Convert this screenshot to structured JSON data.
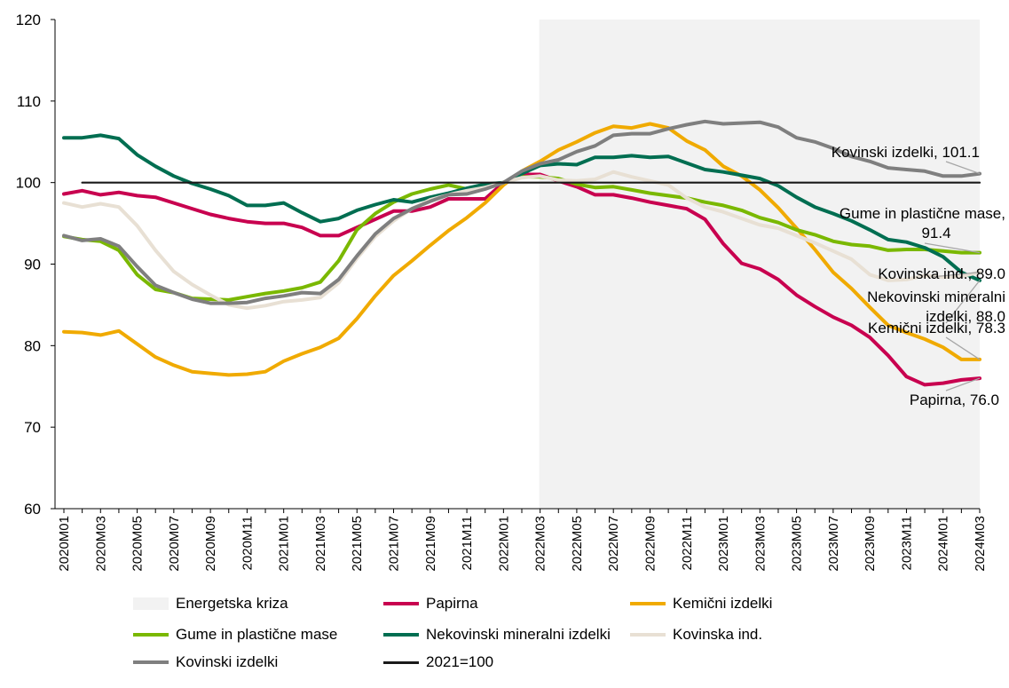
{
  "chart_data": {
    "type": "line",
    "title": "",
    "xlabel": "",
    "ylabel": "",
    "ylim": [
      60,
      120
    ],
    "yticks": [
      60,
      70,
      80,
      90,
      100,
      110,
      120
    ],
    "x": [
      "2020M01",
      "2020M02",
      "2020M03",
      "2020M04",
      "2020M05",
      "2020M06",
      "2020M07",
      "2020M08",
      "2020M09",
      "2020M10",
      "2020M11",
      "2020M12",
      "2021M01",
      "2021M02",
      "2021M03",
      "2021M04",
      "2021M05",
      "2021M06",
      "2021M07",
      "2021M08",
      "2021M09",
      "2021M10",
      "2021M11",
      "2021M12",
      "2022M01",
      "2022M02",
      "2022M03",
      "2022M04",
      "2022M05",
      "2022M06",
      "2022M07",
      "2022M08",
      "2022M09",
      "2022M10",
      "2022M11",
      "2022M12",
      "2023M01",
      "2023M02",
      "2023M03",
      "2023M04",
      "2023M05",
      "2023M06",
      "2023M07",
      "2023M08",
      "2023M09",
      "2023M10",
      "2023M11",
      "2023M12",
      "2024M01",
      "2024M02",
      "2024M03"
    ],
    "xtick_labels": [
      "2020M01",
      "2020M03",
      "2020M05",
      "2020M07",
      "2020M09",
      "2020M11",
      "2021M01",
      "2021M03",
      "2021M05",
      "2021M07",
      "2021M09",
      "2021M11",
      "2022M01",
      "2022M03",
      "2022M05",
      "2022M07",
      "2022M09",
      "2022M11",
      "2023M01",
      "2023M03",
      "2023M05",
      "2023M07",
      "2023M09",
      "2023M11",
      "2024M01",
      "2024M03"
    ],
    "shaded_region": {
      "name": "Energetska kriza",
      "from": "2022M03",
      "to": "2024M03",
      "color": "#f2f2f2"
    },
    "series": [
      {
        "name": "Papirna",
        "color": "#c8004f",
        "values": [
          98.6,
          99.0,
          98.5,
          98.8,
          98.4,
          98.2,
          97.5,
          96.8,
          96.1,
          95.6,
          95.2,
          95.0,
          95.0,
          94.5,
          93.5,
          93.5,
          94.5,
          95.5,
          96.5,
          96.5,
          97.0,
          98.0,
          98.0,
          98.0,
          100.0,
          101.0,
          101.0,
          100.2,
          99.5,
          98.5,
          98.5,
          98.1,
          97.6,
          97.2,
          96.8,
          95.5,
          92.5,
          90.1,
          89.4,
          88.1,
          86.2,
          84.8,
          83.5,
          82.5,
          81.0,
          78.8,
          76.2,
          75.2,
          75.4,
          75.8,
          76.0
        ]
      },
      {
        "name": "Kemični izdelki",
        "color": "#f0aa00",
        "values": [
          81.7,
          81.6,
          81.3,
          81.8,
          80.2,
          78.6,
          77.6,
          76.8,
          76.6,
          76.4,
          76.5,
          76.8,
          78.1,
          79.0,
          79.8,
          80.9,
          83.3,
          86.1,
          88.6,
          90.4,
          92.3,
          94.1,
          95.7,
          97.5,
          99.7,
          101.4,
          102.6,
          104.0,
          105.0,
          106.1,
          106.9,
          106.7,
          107.2,
          106.7,
          105.1,
          104.0,
          102.0,
          100.8,
          99.1,
          96.9,
          94.4,
          91.8,
          89.0,
          87.0,
          84.7,
          82.5,
          81.6,
          80.8,
          79.8,
          78.3,
          78.3
        ]
      },
      {
        "name": "Gume in plastične mase",
        "color": "#7ab800",
        "values": [
          93.4,
          93.0,
          92.8,
          91.7,
          88.7,
          86.9,
          86.5,
          85.8,
          85.7,
          85.6,
          86.0,
          86.4,
          86.7,
          87.1,
          87.8,
          90.4,
          94.2,
          96.2,
          97.6,
          98.6,
          99.2,
          99.7,
          99.2,
          99.4,
          100.0,
          100.7,
          100.7,
          100.5,
          99.8,
          99.4,
          99.5,
          99.1,
          98.7,
          98.4,
          98.1,
          97.6,
          97.2,
          96.6,
          95.7,
          95.1,
          94.2,
          93.6,
          92.8,
          92.4,
          92.2,
          91.7,
          91.8,
          91.8,
          91.6,
          91.4,
          91.4
        ]
      },
      {
        "name": "Nekovinski mineralni izdelki",
        "color": "#006e51",
        "values": [
          105.5,
          105.5,
          105.8,
          105.4,
          103.4,
          102.0,
          100.8,
          99.9,
          99.2,
          98.4,
          97.2,
          97.2,
          97.5,
          96.3,
          95.2,
          95.6,
          96.6,
          97.3,
          97.9,
          97.6,
          98.2,
          98.7,
          99.3,
          99.8,
          100.0,
          101.1,
          102.1,
          102.3,
          102.2,
          103.1,
          103.1,
          103.3,
          103.1,
          103.2,
          102.4,
          101.6,
          101.3,
          100.9,
          100.5,
          99.6,
          98.2,
          97.0,
          96.2,
          95.3,
          94.2,
          93.0,
          92.7,
          92.0,
          90.9,
          89.0,
          88.0
        ]
      },
      {
        "name": "Kovinska ind.",
        "color": "#e8e0d4",
        "values": [
          97.5,
          97.0,
          97.4,
          97.0,
          94.7,
          91.7,
          89.1,
          87.5,
          86.2,
          85.0,
          84.6,
          84.9,
          85.4,
          85.6,
          85.9,
          87.7,
          90.7,
          93.4,
          95.3,
          96.8,
          97.9,
          98.5,
          99.0,
          99.4,
          100.0,
          100.6,
          100.8,
          100.3,
          100.2,
          100.4,
          101.3,
          100.7,
          100.2,
          99.7,
          98.1,
          97.0,
          96.4,
          95.6,
          94.8,
          94.4,
          93.5,
          92.6,
          91.6,
          90.6,
          88.7,
          88.0,
          88.1,
          88.6,
          88.4,
          88.5,
          89.0
        ]
      },
      {
        "name": "Kovinski izdelki",
        "color": "#7f7f7f",
        "values": [
          93.5,
          92.9,
          93.1,
          92.2,
          89.7,
          87.4,
          86.5,
          85.7,
          85.2,
          85.2,
          85.3,
          85.8,
          86.1,
          86.5,
          86.4,
          88.1,
          91.0,
          93.7,
          95.6,
          96.8,
          97.7,
          98.5,
          98.6,
          99.2,
          100.0,
          101.4,
          102.3,
          102.8,
          103.8,
          104.5,
          105.8,
          106.0,
          106.0,
          106.6,
          107.1,
          107.5,
          107.2,
          107.3,
          107.4,
          106.8,
          105.5,
          105.0,
          104.2,
          103.2,
          102.6,
          101.8,
          101.6,
          101.4,
          100.8,
          100.8,
          101.1
        ]
      },
      {
        "name": "2021=100",
        "color": "#1a1a1a",
        "values": [
          null,
          100,
          100,
          100,
          100,
          100,
          100,
          100,
          100,
          100,
          100,
          100,
          100,
          100,
          100,
          100,
          100,
          100,
          100,
          100,
          100,
          100,
          100,
          100,
          100,
          100,
          100,
          100,
          100,
          100,
          100,
          100,
          100,
          100,
          100,
          100,
          100,
          100,
          100,
          100,
          100,
          100,
          100,
          100,
          100,
          100,
          100,
          100,
          100,
          100,
          100
        ]
      }
    ],
    "annotations": [
      {
        "series": "Kovinski izdelki",
        "lines": [
          "Kovinski izdelki, 101.1"
        ]
      },
      {
        "series": "Gume in plastične mase",
        "lines": [
          "Gume in plastične mase,",
          "91.4"
        ]
      },
      {
        "series": "Kovinska ind.",
        "lines": [
          "Kovinska ind., 89.0"
        ]
      },
      {
        "series": "Nekovinski mineralni izdelki",
        "lines": [
          "Nekovinski mineralni",
          "izdelki, 88.0"
        ]
      },
      {
        "series": "Kemični izdelki",
        "lines": [
          "Kemični izdelki, 78.3"
        ]
      },
      {
        "series": "Papirna",
        "lines": [
          "Papirna, 76.0"
        ]
      }
    ]
  },
  "legend": {
    "items": [
      {
        "label": "Energetska kriza",
        "kind": "area",
        "color": "#f2f2f2"
      },
      {
        "label": "Papirna",
        "kind": "line",
        "color": "#c8004f"
      },
      {
        "label": "Kemični izdelki",
        "kind": "line",
        "color": "#f0aa00"
      },
      {
        "label": "Gume in plastične mase",
        "kind": "line",
        "color": "#7ab800"
      },
      {
        "label": "Nekovinski mineralni izdelki",
        "kind": "line",
        "color": "#006e51"
      },
      {
        "label": "Kovinska ind.",
        "kind": "line",
        "color": "#e8e0d4"
      },
      {
        "label": "Kovinski izdelki",
        "kind": "line",
        "color": "#7f7f7f"
      },
      {
        "label": "2021=100",
        "kind": "line",
        "color": "#1a1a1a"
      }
    ]
  }
}
